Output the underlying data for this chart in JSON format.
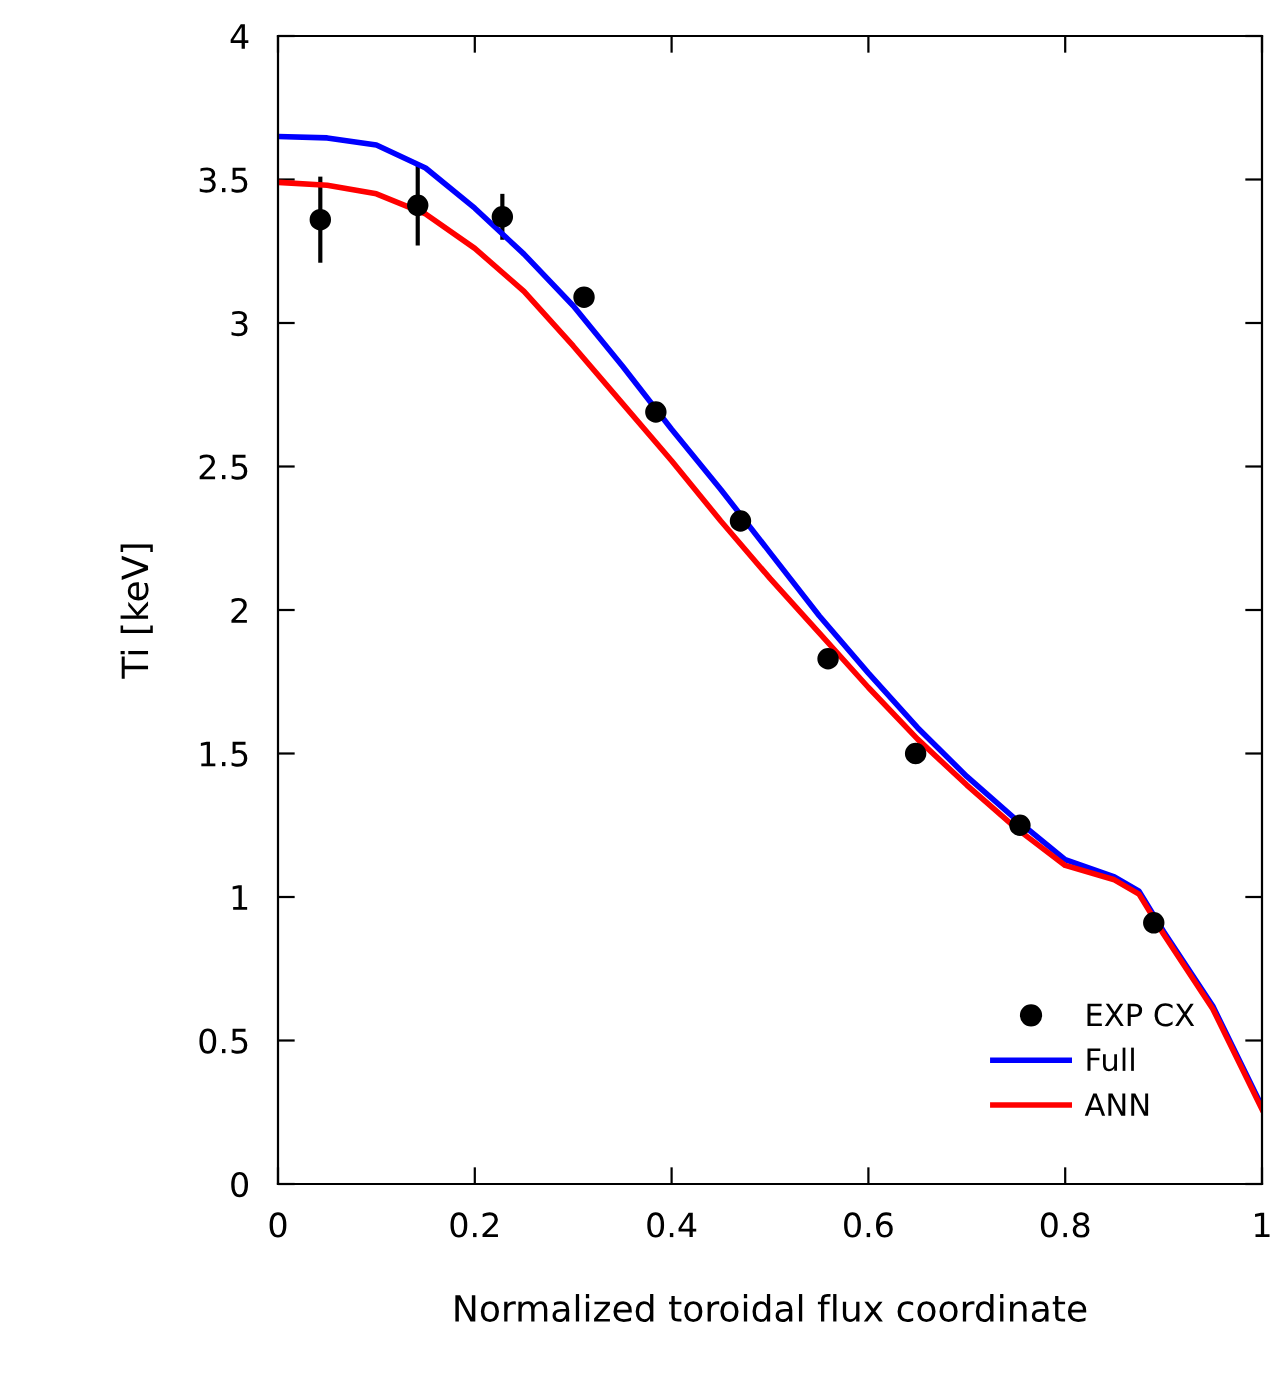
{
  "chart_data": {
    "type": "line",
    "xlabel": "Normalized toroidal flux coordinate",
    "ylabel": "Ti [keV]",
    "xlim": [
      0,
      1
    ],
    "ylim": [
      0,
      4
    ],
    "xticks": [
      0,
      0.2,
      0.4,
      0.6,
      0.8,
      1
    ],
    "yticks": [
      0,
      0.5,
      1,
      1.5,
      2,
      2.5,
      3,
      3.5,
      4
    ],
    "grid": false,
    "legend": "bottom right",
    "series": [
      {
        "name": "EXP CX",
        "type": "scatter",
        "marker": "circle",
        "color": "#000000",
        "x": [
          0.043,
          0.142,
          0.228,
          0.311,
          0.384,
          0.47,
          0.559,
          0.648,
          0.754,
          0.89
        ],
        "values": [
          3.36,
          3.41,
          3.37,
          3.09,
          2.69,
          2.31,
          1.83,
          1.5,
          1.25,
          0.91
        ],
        "errors": [
          0.15,
          0.14,
          0.08,
          0.03,
          null,
          null,
          null,
          null,
          null,
          null
        ]
      },
      {
        "name": "Full",
        "color": "#0000ff",
        "x": [
          0,
          0.05,
          0.1,
          0.15,
          0.2,
          0.25,
          0.3,
          0.35,
          0.4,
          0.45,
          0.5,
          0.55,
          0.6,
          0.65,
          0.7,
          0.75,
          0.8,
          0.85,
          0.875,
          0.9,
          0.95,
          1.0
        ],
        "values": [
          3.65,
          3.645,
          3.62,
          3.54,
          3.4,
          3.24,
          3.06,
          2.85,
          2.63,
          2.42,
          2.2,
          1.98,
          1.78,
          1.59,
          1.42,
          1.27,
          1.13,
          1.07,
          1.02,
          0.88,
          0.62,
          0.27
        ]
      },
      {
        "name": "ANN",
        "color": "#ff0000",
        "x": [
          0,
          0.05,
          0.1,
          0.15,
          0.2,
          0.25,
          0.3,
          0.35,
          0.4,
          0.45,
          0.5,
          0.55,
          0.6,
          0.65,
          0.7,
          0.75,
          0.8,
          0.85,
          0.875,
          0.9,
          0.95,
          1.0
        ],
        "values": [
          3.49,
          3.48,
          3.45,
          3.38,
          3.26,
          3.11,
          2.92,
          2.72,
          2.52,
          2.31,
          2.11,
          1.92,
          1.73,
          1.55,
          1.39,
          1.24,
          1.11,
          1.06,
          1.01,
          0.87,
          0.61,
          0.26
        ]
      }
    ]
  }
}
